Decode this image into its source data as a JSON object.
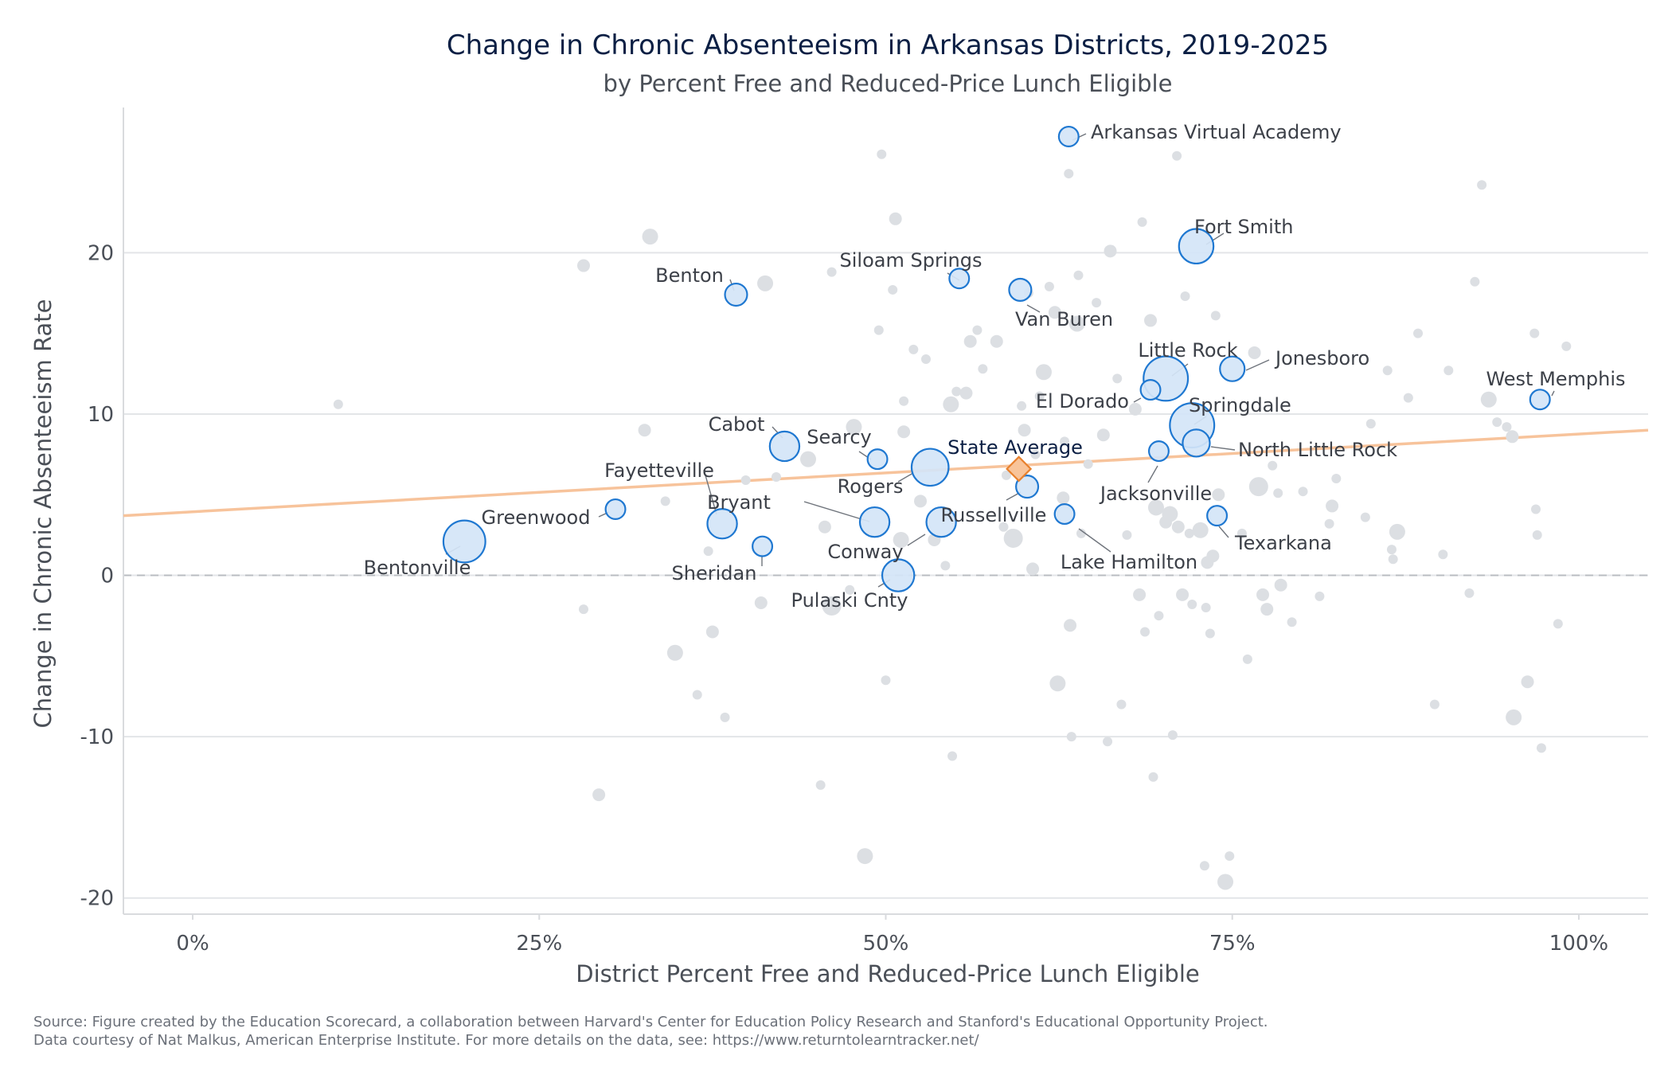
{
  "chart_data": {
    "type": "scatter",
    "title": "Change in Chronic Absenteeism in Arkansas Districts, 2019-2025",
    "subtitle": "by Percent Free and Reduced-Price Lunch Eligible",
    "xlabel": "District Percent Free and Reduced-Price Lunch Eligible",
    "ylabel": "Change in Chronic Absenteeism Rate",
    "xlim": [
      -0.05,
      1.05
    ],
    "ylim": [
      -21,
      29
    ],
    "x_ticks": [
      {
        "value": 0,
        "label": "0%"
      },
      {
        "value": 0.25,
        "label": "25%"
      },
      {
        "value": 0.5,
        "label": "50%"
      },
      {
        "value": 0.75,
        "label": "75%"
      },
      {
        "value": 1.0,
        "label": "100%"
      }
    ],
    "y_ticks": [
      {
        "value": 20,
        "label": "20"
      },
      {
        "value": 10,
        "label": "10"
      },
      {
        "value": 0,
        "label": "0"
      },
      {
        "value": -10,
        "label": "-10"
      },
      {
        "value": -20,
        "label": "-20"
      }
    ],
    "grid": true,
    "reference_line_y": 0,
    "trend_line": {
      "x": [
        -0.05,
        1.05
      ],
      "y": [
        3.7,
        9.0
      ],
      "color": "#f7c39b"
    },
    "colors": {
      "highlight_fill": "#d4e5f7",
      "highlight_stroke": "#1f78d1",
      "background_point": "#dcdfe3",
      "state_average_fill": "#f8c49a",
      "state_average_stroke": "#e8812e"
    },
    "state_average": {
      "name": "State Average",
      "x": 0.596,
      "y": 6.6
    },
    "highlighted_districts": [
      {
        "name": "Arkansas Virtual Academy",
        "x": 0.632,
        "y": 27.2,
        "size": 8
      },
      {
        "name": "Fort Smith",
        "x": 0.724,
        "y": 20.4,
        "size": 14
      },
      {
        "name": "Siloam Springs",
        "x": 0.553,
        "y": 18.4,
        "size": 8
      },
      {
        "name": "Benton",
        "x": 0.392,
        "y": 17.4,
        "size": 9
      },
      {
        "name": "Van Buren",
        "x": 0.597,
        "y": 17.7,
        "size": 9
      },
      {
        "name": "Little Rock",
        "x": 0.702,
        "y": 12.2,
        "size": 18
      },
      {
        "name": "Jonesboro",
        "x": 0.75,
        "y": 12.8,
        "size": 10
      },
      {
        "name": "West Memphis",
        "x": 0.972,
        "y": 10.9,
        "size": 8
      },
      {
        "name": "El Dorado",
        "x": 0.691,
        "y": 11.5,
        "size": 8
      },
      {
        "name": "Springdale",
        "x": 0.721,
        "y": 9.3,
        "size": 18
      },
      {
        "name": "North Little Rock",
        "x": 0.724,
        "y": 8.2,
        "size": 11
      },
      {
        "name": "Cabot",
        "x": 0.427,
        "y": 8.0,
        "size": 12
      },
      {
        "name": "Searcy",
        "x": 0.494,
        "y": 7.2,
        "size": 8
      },
      {
        "name": "Jacksonville",
        "x": 0.697,
        "y": 7.7,
        "size": 8
      },
      {
        "name": "Rogers",
        "x": 0.532,
        "y": 6.7,
        "size": 15
      },
      {
        "name": "Russellville",
        "x": 0.602,
        "y": 5.5,
        "size": 9
      },
      {
        "name": "Fayetteville",
        "x": 0.382,
        "y": 3.2,
        "size": 12
      },
      {
        "name": "Bryant",
        "x": 0.492,
        "y": 3.3,
        "size": 12
      },
      {
        "name": "Greenwood",
        "x": 0.305,
        "y": 4.1,
        "size": 8
      },
      {
        "name": "Lake Hamilton",
        "x": 0.629,
        "y": 3.8,
        "size": 8
      },
      {
        "name": "Texarkana",
        "x": 0.739,
        "y": 3.7,
        "size": 8
      },
      {
        "name": "Conway",
        "x": 0.54,
        "y": 3.3,
        "size": 12
      },
      {
        "name": "Bentonville",
        "x": 0.196,
        "y": 2.1,
        "size": 17
      },
      {
        "name": "Sheridan",
        "x": 0.411,
        "y": 1.8,
        "size": 8
      },
      {
        "name": "Pulaski Cnty",
        "x": 0.509,
        "y": 0.0,
        "size": 13
      }
    ],
    "other_districts": [
      [
        0.105,
        10.6,
        3
      ],
      [
        0.282,
        19.2,
        4
      ],
      [
        0.282,
        -2.1,
        3
      ],
      [
        0.293,
        -13.6,
        4
      ],
      [
        0.326,
        9.0,
        4
      ],
      [
        0.33,
        21.0,
        5
      ],
      [
        0.341,
        4.6,
        3
      ],
      [
        0.348,
        -4.8,
        5
      ],
      [
        0.364,
        -7.4,
        3
      ],
      [
        0.372,
        1.5,
        3
      ],
      [
        0.375,
        -3.5,
        4
      ],
      [
        0.384,
        -8.8,
        3
      ],
      [
        0.399,
        5.9,
        3
      ],
      [
        0.41,
        -1.7,
        4
      ],
      [
        0.413,
        18.1,
        5
      ],
      [
        0.421,
        6.1,
        3
      ],
      [
        0.444,
        7.2,
        5
      ],
      [
        0.453,
        -13.0,
        3
      ],
      [
        0.456,
        3.0,
        4
      ],
      [
        0.461,
        18.8,
        3
      ],
      [
        0.461,
        -1.9,
        6
      ],
      [
        0.474,
        -0.9,
        3
      ],
      [
        0.477,
        9.2,
        5
      ],
      [
        0.485,
        -17.4,
        5
      ],
      [
        0.495,
        15.2,
        3
      ],
      [
        0.497,
        26.1,
        3
      ],
      [
        0.5,
        -6.5,
        3
      ],
      [
        0.505,
        17.7,
        3
      ],
      [
        0.507,
        22.1,
        4
      ],
      [
        0.511,
        2.2,
        5
      ],
      [
        0.513,
        10.8,
        3
      ],
      [
        0.513,
        8.9,
        4
      ],
      [
        0.52,
        14.0,
        3
      ],
      [
        0.525,
        4.6,
        4
      ],
      [
        0.529,
        13.4,
        3
      ],
      [
        0.535,
        2.2,
        4
      ],
      [
        0.543,
        0.6,
        3
      ],
      [
        0.547,
        10.6,
        5
      ],
      [
        0.548,
        -11.2,
        3
      ],
      [
        0.551,
        11.4,
        3
      ],
      [
        0.558,
        11.3,
        4
      ],
      [
        0.561,
        14.5,
        4
      ],
      [
        0.566,
        15.2,
        3
      ],
      [
        0.57,
        12.8,
        3
      ],
      [
        0.58,
        14.5,
        4
      ],
      [
        0.585,
        3.0,
        3
      ],
      [
        0.587,
        6.2,
        3
      ],
      [
        0.592,
        2.3,
        6
      ],
      [
        0.598,
        10.5,
        3
      ],
      [
        0.6,
        9.0,
        4
      ],
      [
        0.603,
        17.5,
        3
      ],
      [
        0.606,
        0.4,
        4
      ],
      [
        0.608,
        7.5,
        3
      ],
      [
        0.611,
        11.1,
        3
      ],
      [
        0.614,
        12.6,
        5
      ],
      [
        0.618,
        17.9,
        3
      ],
      [
        0.622,
        16.3,
        4
      ],
      [
        0.624,
        -6.7,
        5
      ],
      [
        0.628,
        4.8,
        4
      ],
      [
        0.629,
        8.3,
        3
      ],
      [
        0.632,
        24.9,
        3
      ],
      [
        0.633,
        -3.1,
        4
      ],
      [
        0.634,
        -10.0,
        3
      ],
      [
        0.638,
        15.6,
        5
      ],
      [
        0.639,
        18.6,
        3
      ],
      [
        0.641,
        2.6,
        3
      ],
      [
        0.646,
        6.9,
        3
      ],
      [
        0.652,
        16.9,
        3
      ],
      [
        0.657,
        8.7,
        4
      ],
      [
        0.66,
        -10.3,
        3
      ],
      [
        0.662,
        20.1,
        4
      ],
      [
        0.667,
        12.2,
        3
      ],
      [
        0.67,
        -8.0,
        3
      ],
      [
        0.674,
        2.5,
        3
      ],
      [
        0.68,
        10.3,
        4
      ],
      [
        0.683,
        -1.2,
        4
      ],
      [
        0.685,
        21.9,
        3
      ],
      [
        0.687,
        -3.5,
        3
      ],
      [
        0.691,
        15.8,
        4
      ],
      [
        0.693,
        -12.5,
        3
      ],
      [
        0.695,
        4.2,
        5
      ],
      [
        0.697,
        -2.5,
        3
      ],
      [
        0.702,
        3.3,
        4
      ],
      [
        0.705,
        3.8,
        5
      ],
      [
        0.707,
        -9.9,
        3
      ],
      [
        0.71,
        26.0,
        3
      ],
      [
        0.711,
        3.0,
        4
      ],
      [
        0.714,
        -1.2,
        4
      ],
      [
        0.716,
        17.3,
        3
      ],
      [
        0.719,
        2.6,
        3
      ],
      [
        0.721,
        -1.8,
        3
      ],
      [
        0.727,
        2.8,
        5
      ],
      [
        0.73,
        -18.0,
        3
      ],
      [
        0.731,
        -2.0,
        3
      ],
      [
        0.732,
        0.8,
        4
      ],
      [
        0.734,
        -3.6,
        3
      ],
      [
        0.736,
        1.2,
        4
      ],
      [
        0.738,
        16.1,
        3
      ],
      [
        0.74,
        5.0,
        4
      ],
      [
        0.745,
        -19.0,
        5
      ],
      [
        0.748,
        -17.4,
        3
      ],
      [
        0.757,
        2.6,
        3
      ],
      [
        0.761,
        -5.2,
        3
      ],
      [
        0.766,
        13.8,
        4
      ],
      [
        0.769,
        5.5,
        6
      ],
      [
        0.772,
        -1.2,
        4
      ],
      [
        0.775,
        -2.1,
        4
      ],
      [
        0.779,
        6.8,
        3
      ],
      [
        0.783,
        5.1,
        3
      ],
      [
        0.785,
        -0.6,
        4
      ],
      [
        0.793,
        -2.9,
        3
      ],
      [
        0.801,
        5.2,
        3
      ],
      [
        0.813,
        -1.3,
        3
      ],
      [
        0.82,
        3.2,
        3
      ],
      [
        0.822,
        4.3,
        4
      ],
      [
        0.825,
        6.0,
        3
      ],
      [
        0.846,
        3.6,
        3
      ],
      [
        0.85,
        9.4,
        3
      ],
      [
        0.862,
        12.7,
        3
      ],
      [
        0.866,
        1.0,
        3
      ],
      [
        0.869,
        2.7,
        5
      ],
      [
        0.877,
        11.0,
        3
      ],
      [
        0.884,
        15.0,
        3
      ],
      [
        0.896,
        -8.0,
        3
      ],
      [
        0.902,
        1.3,
        3
      ],
      [
        0.906,
        12.7,
        3
      ],
      [
        0.925,
        18.2,
        3
      ],
      [
        0.93,
        24.2,
        3
      ],
      [
        0.935,
        10.9,
        5
      ],
      [
        0.941,
        9.5,
        3
      ],
      [
        0.948,
        9.2,
        3
      ],
      [
        0.952,
        8.6,
        4
      ],
      [
        0.953,
        -8.8,
        5
      ],
      [
        0.963,
        -6.6,
        4
      ],
      [
        0.968,
        15.0,
        3
      ],
      [
        0.969,
        4.1,
        3
      ],
      [
        0.97,
        2.5,
        3
      ],
      [
        0.973,
        -10.7,
        3
      ],
      [
        0.985,
        -3.0,
        3
      ],
      [
        0.991,
        14.2,
        3
      ],
      [
        0.921,
        -1.1,
        3
      ],
      [
        0.865,
        1.6,
        3
      ]
    ],
    "source_lines": [
      "Source: Figure created by the Education Scorecard, a collaboration between Harvard's Center for Education Policy Research and Stanford's Educational Opportunity Project.",
      "Data courtesy of Nat Malkus, American Enterprise Institute. For more details on the data, see: https://www.returntolearntracker.net/"
    ]
  }
}
